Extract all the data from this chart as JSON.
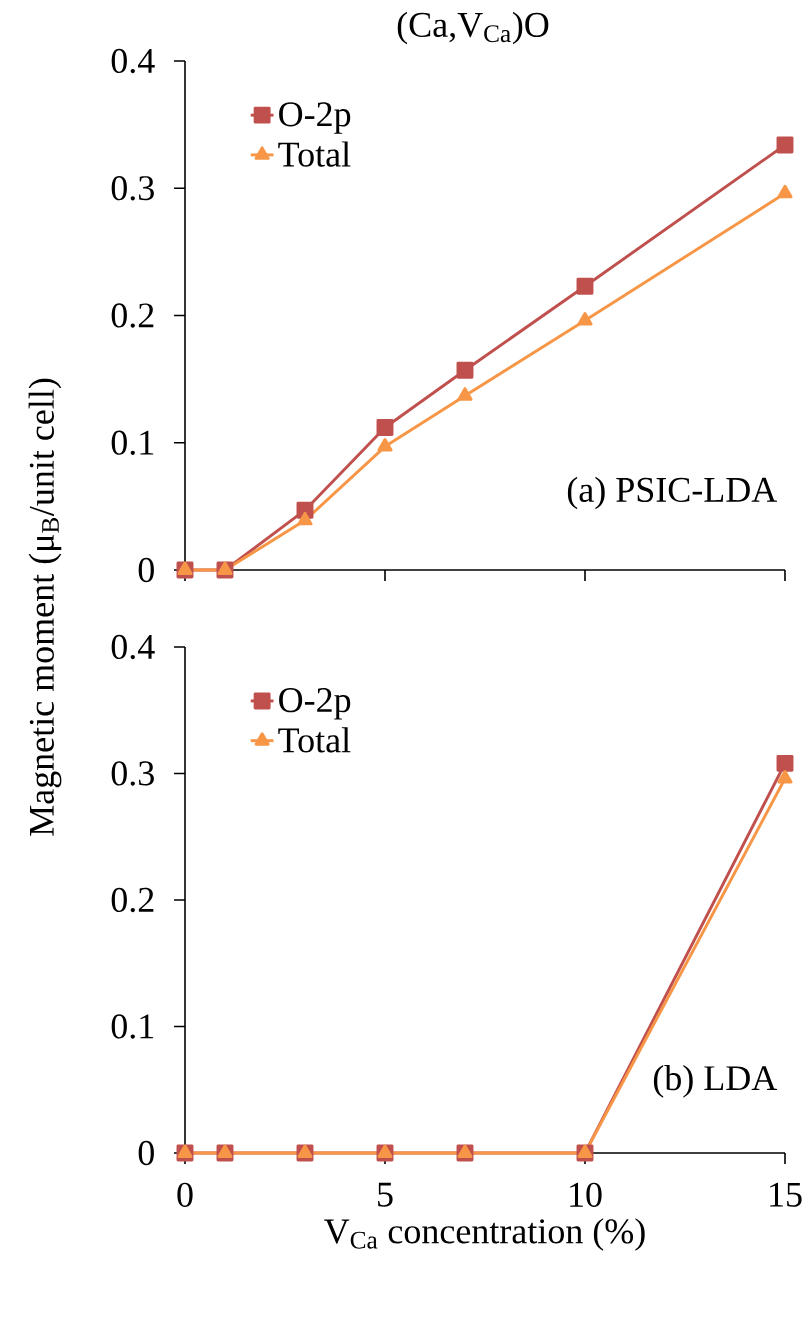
{
  "chart_data": [
    {
      "type": "line",
      "title": "(Ca,V$_{Ca}$)O",
      "ylabel": "Magnetic moment (μ$_{B}$/unit cell)",
      "annotations": [
        "(a) PSIC-LDA"
      ],
      "x": [
        0,
        1,
        3,
        5,
        7,
        10,
        15
      ],
      "xlim": [
        0,
        15
      ],
      "xticks": [
        0,
        5,
        10,
        15
      ],
      "ylim": [
        0,
        0.4
      ],
      "yticks": [
        0,
        0.1,
        0.2,
        0.3,
        0.4
      ],
      "tick_labels": "y",
      "legend": "top left",
      "line_style": "solid",
      "series": [
        {
          "name": "O-2p",
          "color": "#c0504d",
          "marker": "square",
          "values": [
            0,
            0,
            0.047,
            0.112,
            0.157,
            0.223,
            0.334
          ]
        },
        {
          "name": "Total",
          "color": "#f79646",
          "marker": "triangle",
          "values": [
            0,
            0,
            0.039,
            0.097,
            0.137,
            0.196,
            0.296
          ]
        }
      ]
    },
    {
      "type": "line",
      "xlabel": "V$_{Ca}$ concentration (%)",
      "annotations": [
        "(b) LDA"
      ],
      "x": [
        0,
        1,
        3,
        5,
        7,
        10,
        15
      ],
      "xlim": [
        0,
        15
      ],
      "xticks": [
        0,
        5,
        10,
        15
      ],
      "ylim": [
        0,
        0.4
      ],
      "yticks": [
        0,
        0.1,
        0.2,
        0.3,
        0.4
      ],
      "legend": "top left",
      "line_style": "solid",
      "series": [
        {
          "name": "O-2p",
          "color": "#c0504d",
          "marker": "square",
          "values": [
            0,
            0,
            0,
            0,
            0,
            0,
            0.308
          ]
        },
        {
          "name": "Total",
          "color": "#f79646",
          "marker": "triangle",
          "values": [
            0,
            0,
            0,
            0,
            0,
            0,
            0.296
          ]
        }
      ]
    }
  ]
}
